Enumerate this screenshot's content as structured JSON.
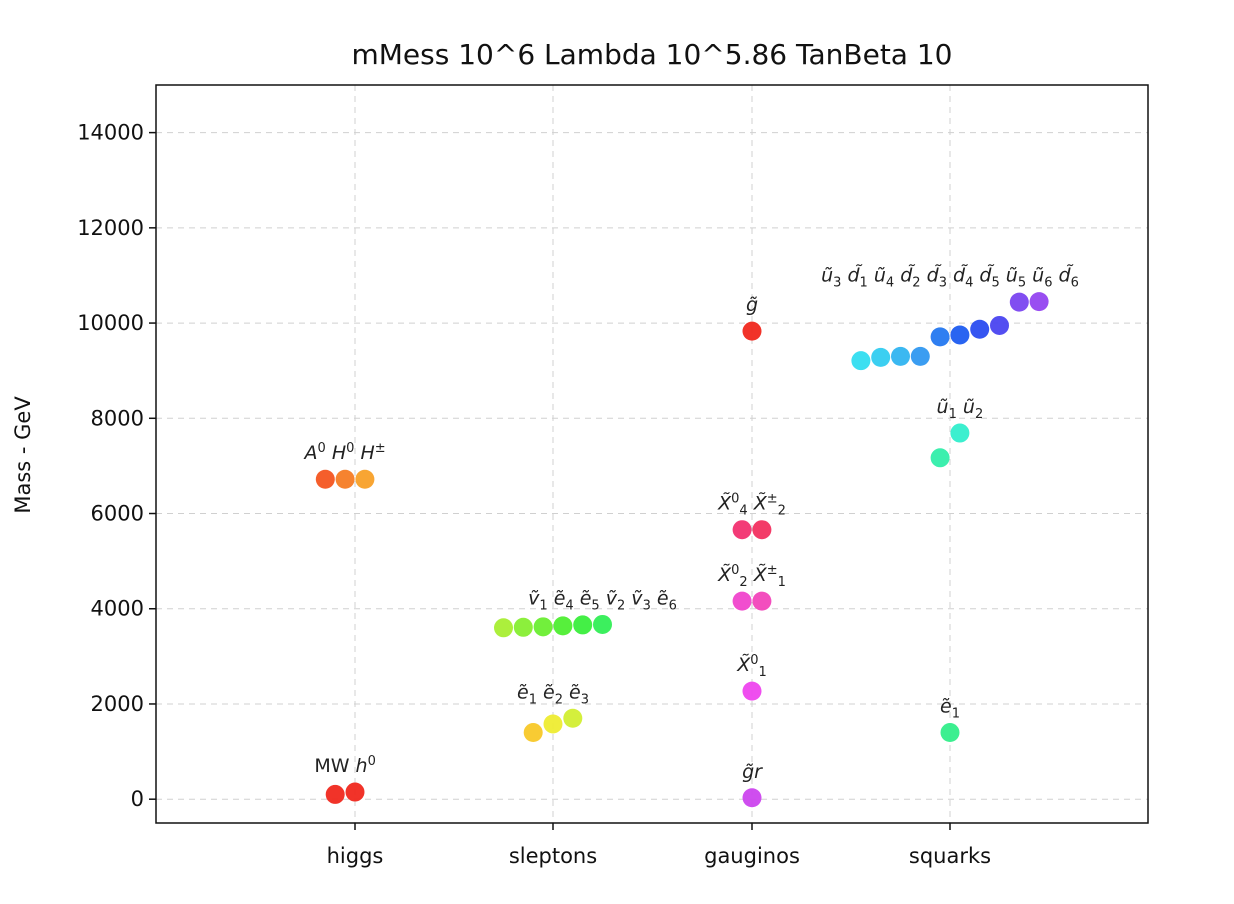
{
  "chart_data": {
    "type": "scatter",
    "title": "mMess  10^6 Lambda 10^5.86 TanBeta 10",
    "xlabel": "",
    "ylabel": "Mass - GeV",
    "ylim": [
      -500,
      15000
    ],
    "yticks": [
      0,
      2000,
      4000,
      6000,
      8000,
      10000,
      12000,
      14000
    ],
    "categories": [
      "higgs",
      "sleptons",
      "gauginos",
      "squarks"
    ],
    "grid": true,
    "points": [
      {
        "category": "higgs",
        "offset": -0.1,
        "y": 100,
        "color": "#f0281e"
      },
      {
        "category": "higgs",
        "offset": 0.0,
        "y": 150,
        "color": "#f0281e"
      },
      {
        "category": "higgs",
        "offset": -0.15,
        "y": 6720,
        "color": "#f45520"
      },
      {
        "category": "higgs",
        "offset": -0.05,
        "y": 6720,
        "color": "#f57c24"
      },
      {
        "category": "higgs",
        "offset": 0.05,
        "y": 6720,
        "color": "#f8a028"
      },
      {
        "category": "sleptons",
        "offset": -0.1,
        "y": 1400,
        "color": "#f8c828"
      },
      {
        "category": "sleptons",
        "offset": 0.0,
        "y": 1580,
        "color": "#eeec32"
      },
      {
        "category": "sleptons",
        "offset": 0.1,
        "y": 1700,
        "color": "#d2ee32"
      },
      {
        "category": "sleptons",
        "offset": -0.25,
        "y": 3600,
        "color": "#a8ee32"
      },
      {
        "category": "sleptons",
        "offset": -0.15,
        "y": 3610,
        "color": "#86ee32"
      },
      {
        "category": "sleptons",
        "offset": -0.05,
        "y": 3620,
        "color": "#6aee32"
      },
      {
        "category": "sleptons",
        "offset": 0.05,
        "y": 3640,
        "color": "#4eee32"
      },
      {
        "category": "sleptons",
        "offset": 0.15,
        "y": 3660,
        "color": "#3aee3c"
      },
      {
        "category": "sleptons",
        "offset": 0.25,
        "y": 3670,
        "color": "#32ee55"
      },
      {
        "category": "gauginos",
        "offset": 0.0,
        "y": 30,
        "color": "#cc44ee"
      },
      {
        "category": "gauginos",
        "offset": 0.0,
        "y": 2270,
        "color": "#ee44ee"
      },
      {
        "category": "gauginos",
        "offset": -0.05,
        "y": 4160,
        "color": "#f044cc"
      },
      {
        "category": "gauginos",
        "offset": 0.05,
        "y": 4160,
        "color": "#f244bb"
      },
      {
        "category": "gauginos",
        "offset": -0.05,
        "y": 5660,
        "color": "#f23070"
      },
      {
        "category": "gauginos",
        "offset": 0.05,
        "y": 5660,
        "color": "#f23060"
      },
      {
        "category": "gauginos",
        "offset": 0.0,
        "y": 9830,
        "color": "#f0281e"
      },
      {
        "category": "squarks",
        "offset": 0.0,
        "y": 1400,
        "color": "#32ee8a"
      },
      {
        "category": "squarks",
        "offset": -0.05,
        "y": 7170,
        "color": "#32eeaa"
      },
      {
        "category": "squarks",
        "offset": 0.05,
        "y": 7690,
        "color": "#32eecc"
      },
      {
        "category": "squarks",
        "offset": -0.45,
        "y": 9210,
        "color": "#32ddf0"
      },
      {
        "category": "squarks",
        "offset": -0.35,
        "y": 9280,
        "color": "#32ccf0"
      },
      {
        "category": "squarks",
        "offset": -0.25,
        "y": 9300,
        "color": "#30b4f0"
      },
      {
        "category": "squarks",
        "offset": -0.15,
        "y": 9300,
        "color": "#3098f0"
      },
      {
        "category": "squarks",
        "offset": -0.05,
        "y": 9710,
        "color": "#2478f0"
      },
      {
        "category": "squarks",
        "offset": 0.05,
        "y": 9750,
        "color": "#1e5cf0"
      },
      {
        "category": "squarks",
        "offset": 0.15,
        "y": 9870,
        "color": "#2a4cf0"
      },
      {
        "category": "squarks",
        "offset": 0.25,
        "y": 9950,
        "color": "#4a44f0"
      },
      {
        "category": "squarks",
        "offset": 0.35,
        "y": 10440,
        "color": "#7a44f0"
      },
      {
        "category": "squarks",
        "offset": 0.45,
        "y": 10450,
        "color": "#9444f0"
      }
    ],
    "annotations": [
      {
        "category": "higgs",
        "offset": -0.05,
        "y": 150,
        "parts": [
          {
            "t": "MW "
          },
          {
            "t": "h",
            "it": true
          },
          {
            "t": "0",
            "sup": true
          }
        ]
      },
      {
        "category": "higgs",
        "offset": -0.05,
        "y": 6720,
        "parts": [
          {
            "t": "A",
            "it": true
          },
          {
            "t": "0",
            "sup": true
          },
          {
            "t": " H",
            "it": true
          },
          {
            "t": "0",
            "sup": true
          },
          {
            "t": " H",
            "it": true
          },
          {
            "t": "±",
            "sup": true
          }
        ]
      },
      {
        "category": "sleptons",
        "offset": 0.0,
        "y": 1700,
        "parts": [
          {
            "t": "ẽ",
            "it": true
          },
          {
            "t": "1",
            "sub": true
          },
          {
            "t": " ẽ",
            "it": true
          },
          {
            "t": "2",
            "sub": true
          },
          {
            "t": " ẽ",
            "it": true
          },
          {
            "t": "3",
            "sub": true
          }
        ]
      },
      {
        "category": "sleptons",
        "offset": 0.25,
        "y": 3670,
        "parts": [
          {
            "t": "ṽ",
            "it": true
          },
          {
            "t": "1",
            "sub": true
          },
          {
            "t": " ẽ",
            "it": true
          },
          {
            "t": "4",
            "sub": true
          },
          {
            "t": " ẽ",
            "it": true
          },
          {
            "t": "5",
            "sub": true
          },
          {
            "t": " ṽ",
            "it": true
          },
          {
            "t": "2",
            "sub": true
          },
          {
            "t": " ṽ",
            "it": true
          },
          {
            "t": "3",
            "sub": true
          },
          {
            "t": " ẽ",
            "it": true
          },
          {
            "t": "6",
            "sub": true
          }
        ]
      },
      {
        "category": "gauginos",
        "offset": 0.0,
        "y": 30,
        "parts": [
          {
            "t": "g̃r",
            "it": true
          }
        ]
      },
      {
        "category": "gauginos",
        "offset": 0.0,
        "y": 2270,
        "parts": [
          {
            "t": "X̃",
            "it": true
          },
          {
            "t": "0",
            "sup": true
          },
          {
            "t": "1",
            "sub": true
          }
        ]
      },
      {
        "category": "gauginos",
        "offset": 0.0,
        "y": 4160,
        "parts": [
          {
            "t": "X̃",
            "it": true
          },
          {
            "t": "0",
            "sup": true
          },
          {
            "t": "2",
            "sub": true
          },
          {
            "t": " X̃",
            "it": true
          },
          {
            "t": "±",
            "sup": true
          },
          {
            "t": "1",
            "sub": true
          }
        ]
      },
      {
        "category": "gauginos",
        "offset": 0.0,
        "y": 5660,
        "parts": [
          {
            "t": "X̃",
            "it": true
          },
          {
            "t": "0",
            "sup": true
          },
          {
            "t": "4",
            "sub": true
          },
          {
            "t": " X̃",
            "it": true
          },
          {
            "t": "±",
            "sup": true
          },
          {
            "t": "2",
            "sub": true
          }
        ]
      },
      {
        "category": "gauginos",
        "offset": 0.0,
        "y": 9830,
        "parts": [
          {
            "t": "g̃",
            "it": true
          }
        ]
      },
      {
        "category": "squarks",
        "offset": 0.0,
        "y": 1400,
        "parts": [
          {
            "t": "ẽ",
            "it": true
          },
          {
            "t": "1",
            "sub": true
          }
        ]
      },
      {
        "category": "squarks",
        "offset": 0.05,
        "y": 7690,
        "parts": [
          {
            "t": "ũ",
            "it": true
          },
          {
            "t": "1",
            "sub": true
          },
          {
            "t": " ũ",
            "it": true
          },
          {
            "t": "2",
            "sub": true
          }
        ]
      },
      {
        "category": "squarks",
        "offset": 0.0,
        "y": 10450,
        "parts": [
          {
            "t": "ũ",
            "it": true
          },
          {
            "t": "3",
            "sub": true
          },
          {
            "t": " d̃",
            "it": true
          },
          {
            "t": "1",
            "sub": true
          },
          {
            "t": " ũ",
            "it": true
          },
          {
            "t": "4",
            "sub": true
          },
          {
            "t": " d̃",
            "it": true
          },
          {
            "t": "2",
            "sub": true
          },
          {
            "t": " d̃",
            "it": true
          },
          {
            "t": "3",
            "sub": true
          },
          {
            "t": " d̃",
            "it": true
          },
          {
            "t": "4",
            "sub": true
          },
          {
            "t": " d̃",
            "it": true
          },
          {
            "t": "5",
            "sub": true
          },
          {
            "t": " ũ",
            "it": true
          },
          {
            "t": "5",
            "sub": true
          },
          {
            "t": " ũ",
            "it": true
          },
          {
            "t": "6",
            "sub": true
          },
          {
            "t": " d̃",
            "it": true
          },
          {
            "t": "6",
            "sub": true
          }
        ]
      }
    ]
  }
}
